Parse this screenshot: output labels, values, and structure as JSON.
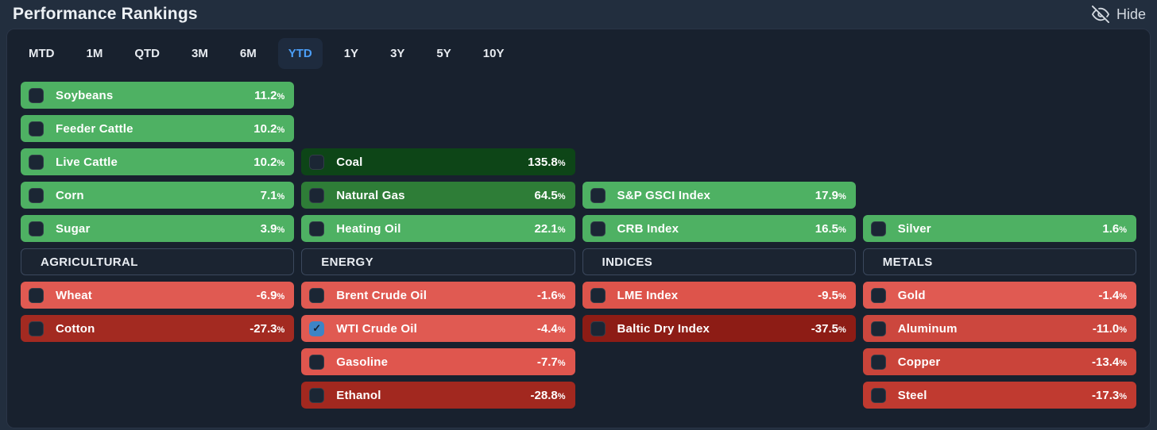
{
  "header": {
    "title": "Performance Rankings",
    "hide_label": "Hide"
  },
  "tabs": {
    "items": [
      "MTD",
      "1M",
      "QTD",
      "3M",
      "6M",
      "YTD",
      "1Y",
      "3Y",
      "5Y",
      "10Y"
    ],
    "active": "YTD",
    "active_color": "#4b9ef7"
  },
  "colors": {
    "page_background": "#222e3e",
    "panel_background": "#18212e",
    "green_light": "#4eb163",
    "green_mid": "#2e7d37",
    "green_dark": "#0d4517",
    "red_light": "#e05a52",
    "red_dark": "#8d1c15",
    "checkbox_unchecked": "#1b2634",
    "checkbox_checked": "#3d84c6"
  },
  "percent_sign": "%",
  "checkmark": "✓",
  "columns": [
    {
      "label": "AGRICULTURAL",
      "gainers": [
        {
          "name": "Soybeans",
          "value": "11.2",
          "color": "#4eb163",
          "checked": false
        },
        {
          "name": "Feeder Cattle",
          "value": "10.2",
          "color": "#4eb163",
          "checked": false
        },
        {
          "name": "Live Cattle",
          "value": "10.2",
          "color": "#4eb163",
          "checked": false
        },
        {
          "name": "Corn",
          "value": "7.1",
          "color": "#4eb163",
          "checked": false
        },
        {
          "name": "Sugar",
          "value": "3.9",
          "color": "#4eb163",
          "checked": false
        }
      ],
      "losers": [
        {
          "name": "Wheat",
          "value": "-6.9",
          "color": "#e05a52",
          "checked": false
        },
        {
          "name": "Cotton",
          "value": "-27.3",
          "color": "#a32a21",
          "checked": false
        }
      ]
    },
    {
      "label": "ENERGY",
      "gainers": [
        {
          "name": "Coal",
          "value": "135.8",
          "color": "#0d4517",
          "checked": false
        },
        {
          "name": "Natural Gas",
          "value": "64.5",
          "color": "#2e7d37",
          "checked": false
        },
        {
          "name": "Heating Oil",
          "value": "22.1",
          "color": "#4eb163",
          "checked": false
        }
      ],
      "losers": [
        {
          "name": "Brent Crude Oil",
          "value": "-1.6",
          "color": "#e05a52",
          "checked": false
        },
        {
          "name": "WTI Crude Oil",
          "value": "-4.4",
          "color": "#e05a52",
          "checked": true
        },
        {
          "name": "Gasoline",
          "value": "-7.7",
          "color": "#df564e",
          "checked": false
        },
        {
          "name": "Ethanol",
          "value": "-28.8",
          "color": "#a2281f",
          "checked": false
        }
      ]
    },
    {
      "label": "INDICES",
      "gainers": [
        {
          "name": "S&P GSCI Index",
          "value": "17.9",
          "color": "#4eb163",
          "checked": false
        },
        {
          "name": "CRB Index",
          "value": "16.5",
          "color": "#4eb163",
          "checked": false
        }
      ],
      "losers": [
        {
          "name": "LME Index",
          "value": "-9.5",
          "color": "#dd544b",
          "checked": false
        },
        {
          "name": "Baltic Dry Index",
          "value": "-37.5",
          "color": "#8d1c15",
          "checked": false
        }
      ]
    },
    {
      "label": "METALS",
      "gainers": [
        {
          "name": "Silver",
          "value": "1.6",
          "color": "#4eb163",
          "checked": false
        }
      ],
      "losers": [
        {
          "name": "Gold",
          "value": "-1.4",
          "color": "#e05a52",
          "checked": false
        },
        {
          "name": "Aluminum",
          "value": "-11.0",
          "color": "#cc473e",
          "checked": false
        },
        {
          "name": "Copper",
          "value": "-13.4",
          "color": "#ca443a",
          "checked": false
        },
        {
          "name": "Steel",
          "value": "-17.3",
          "color": "#c03a30",
          "checked": false
        }
      ]
    }
  ]
}
